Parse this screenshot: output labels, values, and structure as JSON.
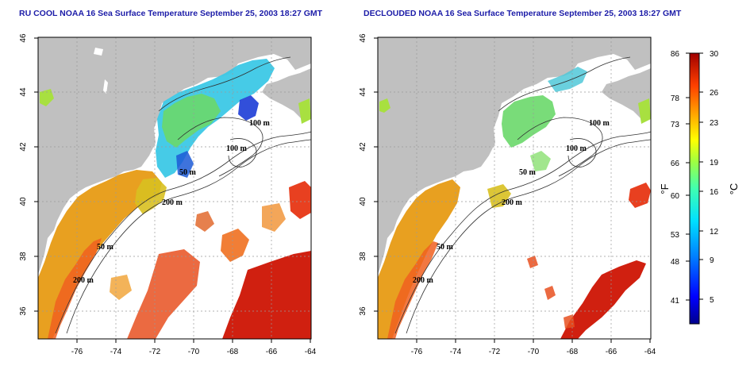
{
  "left_panel": {
    "title": "RU COOL NOAA 16 Sea Surface Temperature September 25, 2003 18:27 GMT"
  },
  "right_panel": {
    "title": "DECLOUDED NOAA 16 Sea Surface Temperature September 25, 2003 18:27 GMT"
  },
  "axes": {
    "lon_ticks": [
      "-76",
      "-74",
      "-72",
      "-70",
      "-68",
      "-66",
      "-64"
    ],
    "lat_ticks": [
      "36",
      "38",
      "40",
      "42",
      "44",
      "46"
    ]
  },
  "contour_labels": {
    "left": [
      "100 m",
      "100 m",
      "50 m",
      "200 m",
      "50 m",
      "200 m"
    ],
    "right": [
      "100 m",
      "100 m",
      "50 m",
      "200 m",
      "50 m",
      "200 m"
    ]
  },
  "colorbar": {
    "fahrenheit_ticks": [
      "86",
      "78",
      "73",
      "66",
      "60",
      "53",
      "48",
      "41"
    ],
    "celsius_ticks": [
      "30",
      "26",
      "23",
      "19",
      "16",
      "12",
      "9",
      "5"
    ],
    "fahrenheit_unit": "°F",
    "celsius_unit": "°C"
  },
  "colors": {
    "title": "#1c1ca8",
    "land": "#c0c0c0",
    "ocean_cloud": "#ffffff"
  }
}
